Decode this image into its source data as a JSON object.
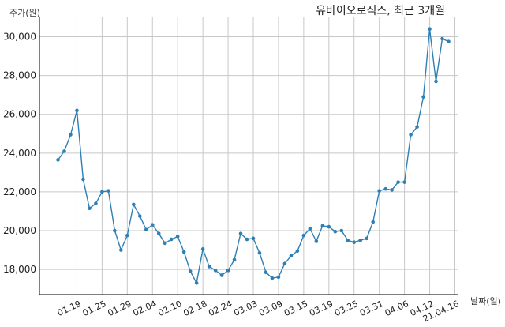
{
  "chart_data": {
    "type": "line",
    "title": "유바이오로직스, 최근 3개월",
    "ylabel": "주가(원)",
    "xlabel": "날짜(일)",
    "ylim": [
      16700,
      31000
    ],
    "yticks": [
      18000,
      20000,
      22000,
      24000,
      26000,
      28000,
      30000
    ],
    "ytick_labels": [
      "18,000",
      "20,000",
      "22,000",
      "24,000",
      "26,000",
      "28,000",
      "30,000"
    ],
    "xtick_labels": [
      "01.19",
      "01.25",
      "01.29",
      "02.04",
      "02.10",
      "02.18",
      "02.24",
      "03.03",
      "03.09",
      "03.15",
      "03.19",
      "03.25",
      "03.31",
      "04.06",
      "04.12",
      "21.04.16"
    ],
    "xtick_index": [
      3,
      7,
      11,
      15,
      19,
      23,
      27,
      31,
      35,
      39,
      43,
      47,
      51,
      55,
      59,
      63
    ],
    "grid": true,
    "color": "#2e7fb4",
    "series": [
      {
        "values": [
          23650,
          24100,
          24950,
          26200,
          22650,
          21150,
          21400,
          22000,
          22050,
          20000,
          19000,
          19750,
          21350,
          20750,
          20050,
          20300,
          19850,
          19350,
          19550,
          19700,
          18900,
          17900,
          17300,
          19050,
          18150,
          17950,
          17700,
          17950,
          18500,
          19850,
          19550,
          19600,
          18850,
          17850,
          17550,
          17600,
          18300,
          18700,
          18950,
          19750,
          20100,
          19450,
          20250,
          20200,
          19950,
          20000,
          19500,
          19400,
          19500,
          19600,
          20450,
          22050,
          22150,
          22100,
          22500,
          22500,
          24950,
          25350,
          26900,
          30400,
          27700,
          29900,
          29750
        ]
      }
    ]
  }
}
